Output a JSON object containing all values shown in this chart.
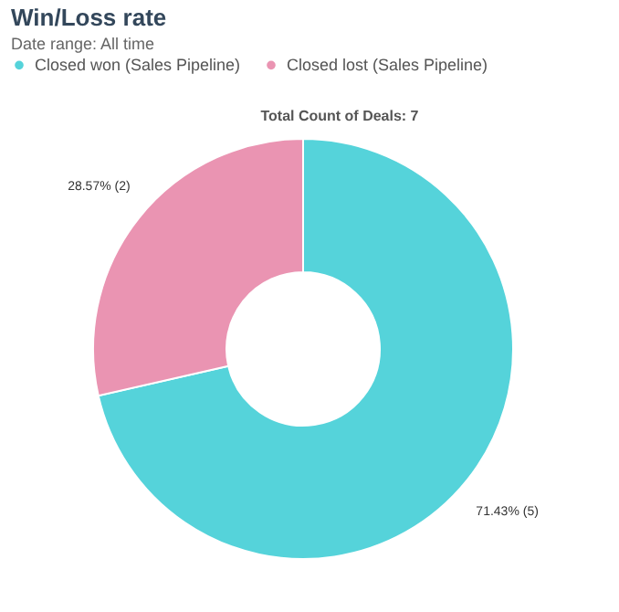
{
  "chart_data": {
    "type": "donut",
    "title": "Win/Loss rate",
    "subtitle": "Date range: All time",
    "categories": [
      "Closed won (Sales Pipeline)",
      "Closed lost (Sales Pipeline)"
    ],
    "values": [
      71.43,
      28.57
    ],
    "colors": [
      "#55d3da",
      "#ea94b2"
    ],
    "value_labels": [
      "71.43% (5)",
      "28.57% (2)"
    ],
    "annotations": [
      "Total Count of Deals: 7"
    ],
    "legend": "top left"
  }
}
